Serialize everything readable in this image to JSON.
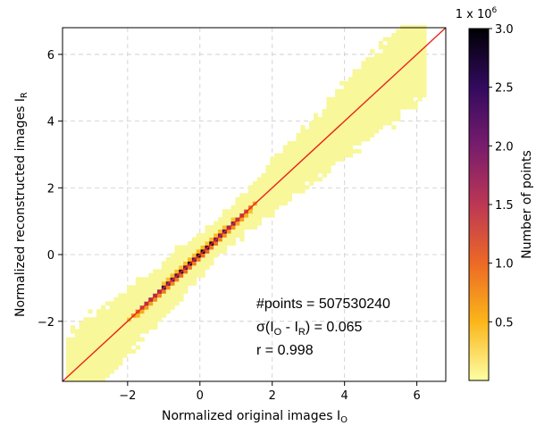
{
  "chart_data": {
    "type": "heatmap",
    "title": "",
    "xlabel": "Normalized original images I",
    "xlabel_sub": "O",
    "ylabel": "Normalized reconstructed images I",
    "ylabel_sub": "R",
    "xlim": [
      -3.8,
      6.8
    ],
    "ylim": [
      -3.8,
      6.8
    ],
    "xticks": [
      -2,
      0,
      2,
      4,
      6
    ],
    "yticks": [
      -2,
      0,
      2,
      4,
      6
    ],
    "grid": true,
    "grid_style": "dashed",
    "reference_line": {
      "label": "y = x",
      "color": "#e8251c"
    },
    "colorbar": {
      "label": "Number of points",
      "multiplier": "1 x 10",
      "multiplier_exp": "6",
      "min": 0.0,
      "max": 3.0,
      "ticks": [
        0.5,
        1.0,
        1.5,
        2.0,
        2.5,
        3.0
      ],
      "colormap": "inferno_r",
      "colors": [
        "#fcffa4",
        "#fbb61a",
        "#ed6925",
        "#bc3754",
        "#781c6d",
        "#320a5e",
        "#000004"
      ]
    },
    "density": {
      "description_of_spread": "points concentrated along the line y = x",
      "peak_region_x": [
        -2.1,
        1.6
      ],
      "tail_region_x": [
        -3.7,
        6.2
      ],
      "peak_count_millions": 3.0
    },
    "annotations": {
      "points_label": "#points = 507530240",
      "sigma_prefix": "σ(I",
      "sigma_sub1": "O",
      "sigma_mid": " - I",
      "sigma_sub2": "R",
      "sigma_suffix": ") = 0.065",
      "r_label": "r = 0.998"
    }
  }
}
